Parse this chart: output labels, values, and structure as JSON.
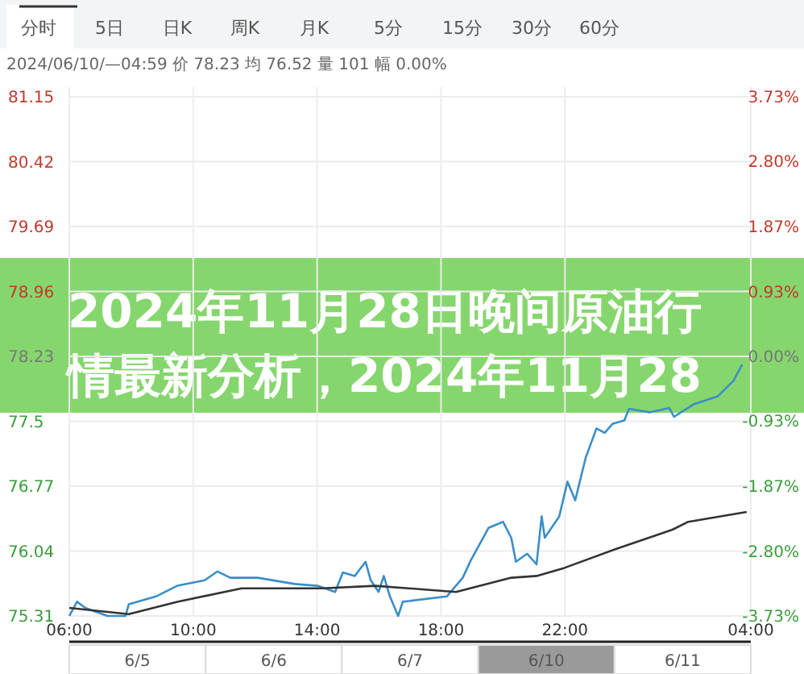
{
  "chart_data": {
    "type": "line",
    "title": "2024年11月28日晚间原油行情最新分析，2024年11月28",
    "subtitle": "2024/06/10/—04:59 价 78.23 均 76.52 量 101 幅 0.00%",
    "annotations": [
      "分时",
      "5日",
      "日K",
      "周K",
      "月K",
      "5分",
      "15分",
      "30分",
      "60分",
      "6/5",
      "6/6",
      "6/7",
      "6/10",
      "6/11"
    ],
    "xlim": [
      "2024-06-10T06:00",
      "2024-06-11T04:00"
    ],
    "xticks": [
      {
        "value": "2024-06-10T06:00",
        "label": "06:00"
      },
      {
        "value": "2024-06-10T10:00",
        "label": "10:00"
      },
      {
        "value": "2024-06-10T14:00",
        "label": "14:00"
      },
      {
        "value": "2024-06-10T18:00",
        "label": "18:00"
      },
      {
        "value": "2024-06-10T22:00",
        "label": "22:00"
      },
      {
        "value": "2024-06-11T04:00",
        "label": "04:00"
      }
    ],
    "ylim": [
      75.31,
      81.15
    ],
    "yticks": [
      75.31,
      76.04,
      76.77,
      77.5,
      78.23,
      78.96,
      79.69,
      80.42,
      81.15
    ],
    "y2lim": [
      -3.73,
      3.73
    ],
    "y2ticks": [
      {
        "value": -3.73,
        "label": "-3.73%"
      },
      {
        "value": -2.8,
        "label": "-2.80%"
      },
      {
        "value": -1.87,
        "label": "-1.87%"
      },
      {
        "value": -0.93,
        "label": "-0.93%"
      },
      {
        "value": 0,
        "label": "0.00%"
      },
      {
        "value": 0.93,
        "label": "0.93%"
      },
      {
        "value": 1.87,
        "label": "1.87%"
      },
      {
        "value": 2.8,
        "label": "2.80%"
      },
      {
        "value": 3.73,
        "label": "3.73%"
      }
    ],
    "grid": true,
    "series": [
      {
        "color": "#3a8ec8",
        "x": [
          "2024-06-10T06:00",
          "2024-06-10T06:15",
          "2024-06-10T06:31",
          "2024-06-10T07:14",
          "2024-06-10T07:49",
          "2024-06-10T07:55",
          "2024-06-10T08:48",
          "2024-06-10T09:29",
          "2024-06-10T10:22",
          "2024-06-10T10:47",
          "2024-06-10T11:12",
          "2024-06-10T12:05",
          "2024-06-10T13:17",
          "2024-06-10T14:01",
          "2024-06-10T14:35",
          "2024-06-10T14:50",
          "2024-06-10T15:13",
          "2024-06-10T15:34",
          "2024-06-10T15:44",
          "2024-06-10T15:59",
          "2024-06-10T16:09",
          "2024-06-10T16:21",
          "2024-06-10T16:37",
          "2024-06-10T16:46",
          "2024-06-10T18:11",
          "2024-06-10T18:42",
          "2024-06-10T18:58",
          "2024-06-10T19:32",
          "2024-06-10T20:00",
          "2024-06-10T20:16",
          "2024-06-10T20:25",
          "2024-06-10T20:47",
          "2024-06-10T21:05",
          "2024-06-10T21:15",
          "2024-06-10T21:21",
          "2024-06-10T21:49",
          "2024-06-10T22:05",
          "2024-06-10T22:20",
          "2024-06-10T22:40",
          "2024-06-10T23:01",
          "2024-06-10T23:17",
          "2024-06-10T23:32",
          "2024-06-10T23:55",
          "2024-06-11T00:04",
          "2024-06-11T00:44",
          "2024-06-11T01:22",
          "2024-06-11T01:31",
          "2024-06-11T02:09",
          "2024-06-11T02:56",
          "2024-06-11T03:27",
          "2024-06-11T03:43"
        ],
        "values": [
          75.31,
          75.47,
          75.4,
          75.31,
          75.31,
          75.44,
          75.53,
          75.65,
          75.71,
          75.81,
          75.74,
          75.74,
          75.67,
          75.65,
          75.58,
          75.8,
          75.76,
          75.92,
          75.71,
          75.58,
          75.76,
          75.53,
          75.31,
          75.47,
          75.53,
          75.74,
          75.94,
          76.3,
          76.37,
          76.19,
          75.92,
          76.01,
          75.89,
          76.43,
          76.19,
          76.43,
          76.82,
          76.61,
          77.09,
          77.42,
          77.37,
          77.47,
          77.51,
          77.64,
          77.6,
          77.65,
          77.55,
          77.69,
          77.78,
          77.96,
          78.14
        ]
      },
      {
        "color": "#333333",
        "x": [
          "2024-06-10T06:00",
          "2024-06-10T07:55",
          "2024-06-10T09:29",
          "2024-06-10T11:34",
          "2024-06-10T14:10",
          "2024-06-10T15:53",
          "2024-06-10T18:29",
          "2024-06-10T20:16",
          "2024-06-10T21:05",
          "2024-06-10T21:59",
          "2024-06-10T23:42",
          "2024-06-11T01:28",
          "2024-06-11T01:59",
          "2024-06-11T03:52"
        ],
        "values": [
          75.4,
          75.33,
          75.47,
          75.62,
          75.62,
          75.65,
          75.58,
          75.74,
          75.76,
          75.85,
          76.07,
          76.28,
          76.37,
          76.48
        ]
      }
    ]
  }
}
